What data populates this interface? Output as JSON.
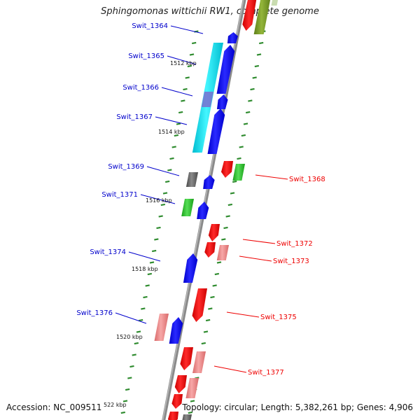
{
  "title": "Sphingomonas wittichii RW1, complete genome",
  "footer": {
    "accession": "Accession: NC_009511",
    "topology": "Topology: circular; Length: 5,382,261 bp; Genes: 4,906"
  },
  "colors": {
    "backbone": "#8c8c8c",
    "forward_label": "#0000cc",
    "reverse_label": "#ee0000",
    "tick": "#2e8b2e",
    "highlight": "#00e5ee"
  },
  "ticks": [
    {
      "label": "1512 kbp"
    },
    {
      "label": "1514 kbp"
    },
    {
      "label": "1516 kbp"
    },
    {
      "label": "1518 kbp"
    },
    {
      "label": "1520 kbp"
    },
    {
      "label": "522 kbp"
    }
  ],
  "genes": [
    {
      "name": "Swit_1364",
      "strand": "forward",
      "color": "blue"
    },
    {
      "name": "Swit_1365",
      "strand": "forward",
      "color": "blue"
    },
    {
      "name": "Swit_1366",
      "strand": "forward",
      "color": "blue"
    },
    {
      "name": "Swit_1367",
      "strand": "forward",
      "color": "blue"
    },
    {
      "name": "Swit_1368",
      "strand": "reverse",
      "color": "red"
    },
    {
      "name": "Swit_1369",
      "strand": "forward",
      "color": "blue"
    },
    {
      "name": "Swit_1371",
      "strand": "forward",
      "color": "blue"
    },
    {
      "name": "Swit_1372",
      "strand": "reverse",
      "color": "red"
    },
    {
      "name": "Swit_1373",
      "strand": "reverse",
      "color": "red"
    },
    {
      "name": "Swit_1374",
      "strand": "forward",
      "color": "blue"
    },
    {
      "name": "Swit_1375",
      "strand": "reverse",
      "color": "red"
    },
    {
      "name": "Swit_1376",
      "strand": "forward",
      "color": "blue"
    },
    {
      "name": "Swit_1377",
      "strand": "reverse",
      "color": "red"
    }
  ]
}
